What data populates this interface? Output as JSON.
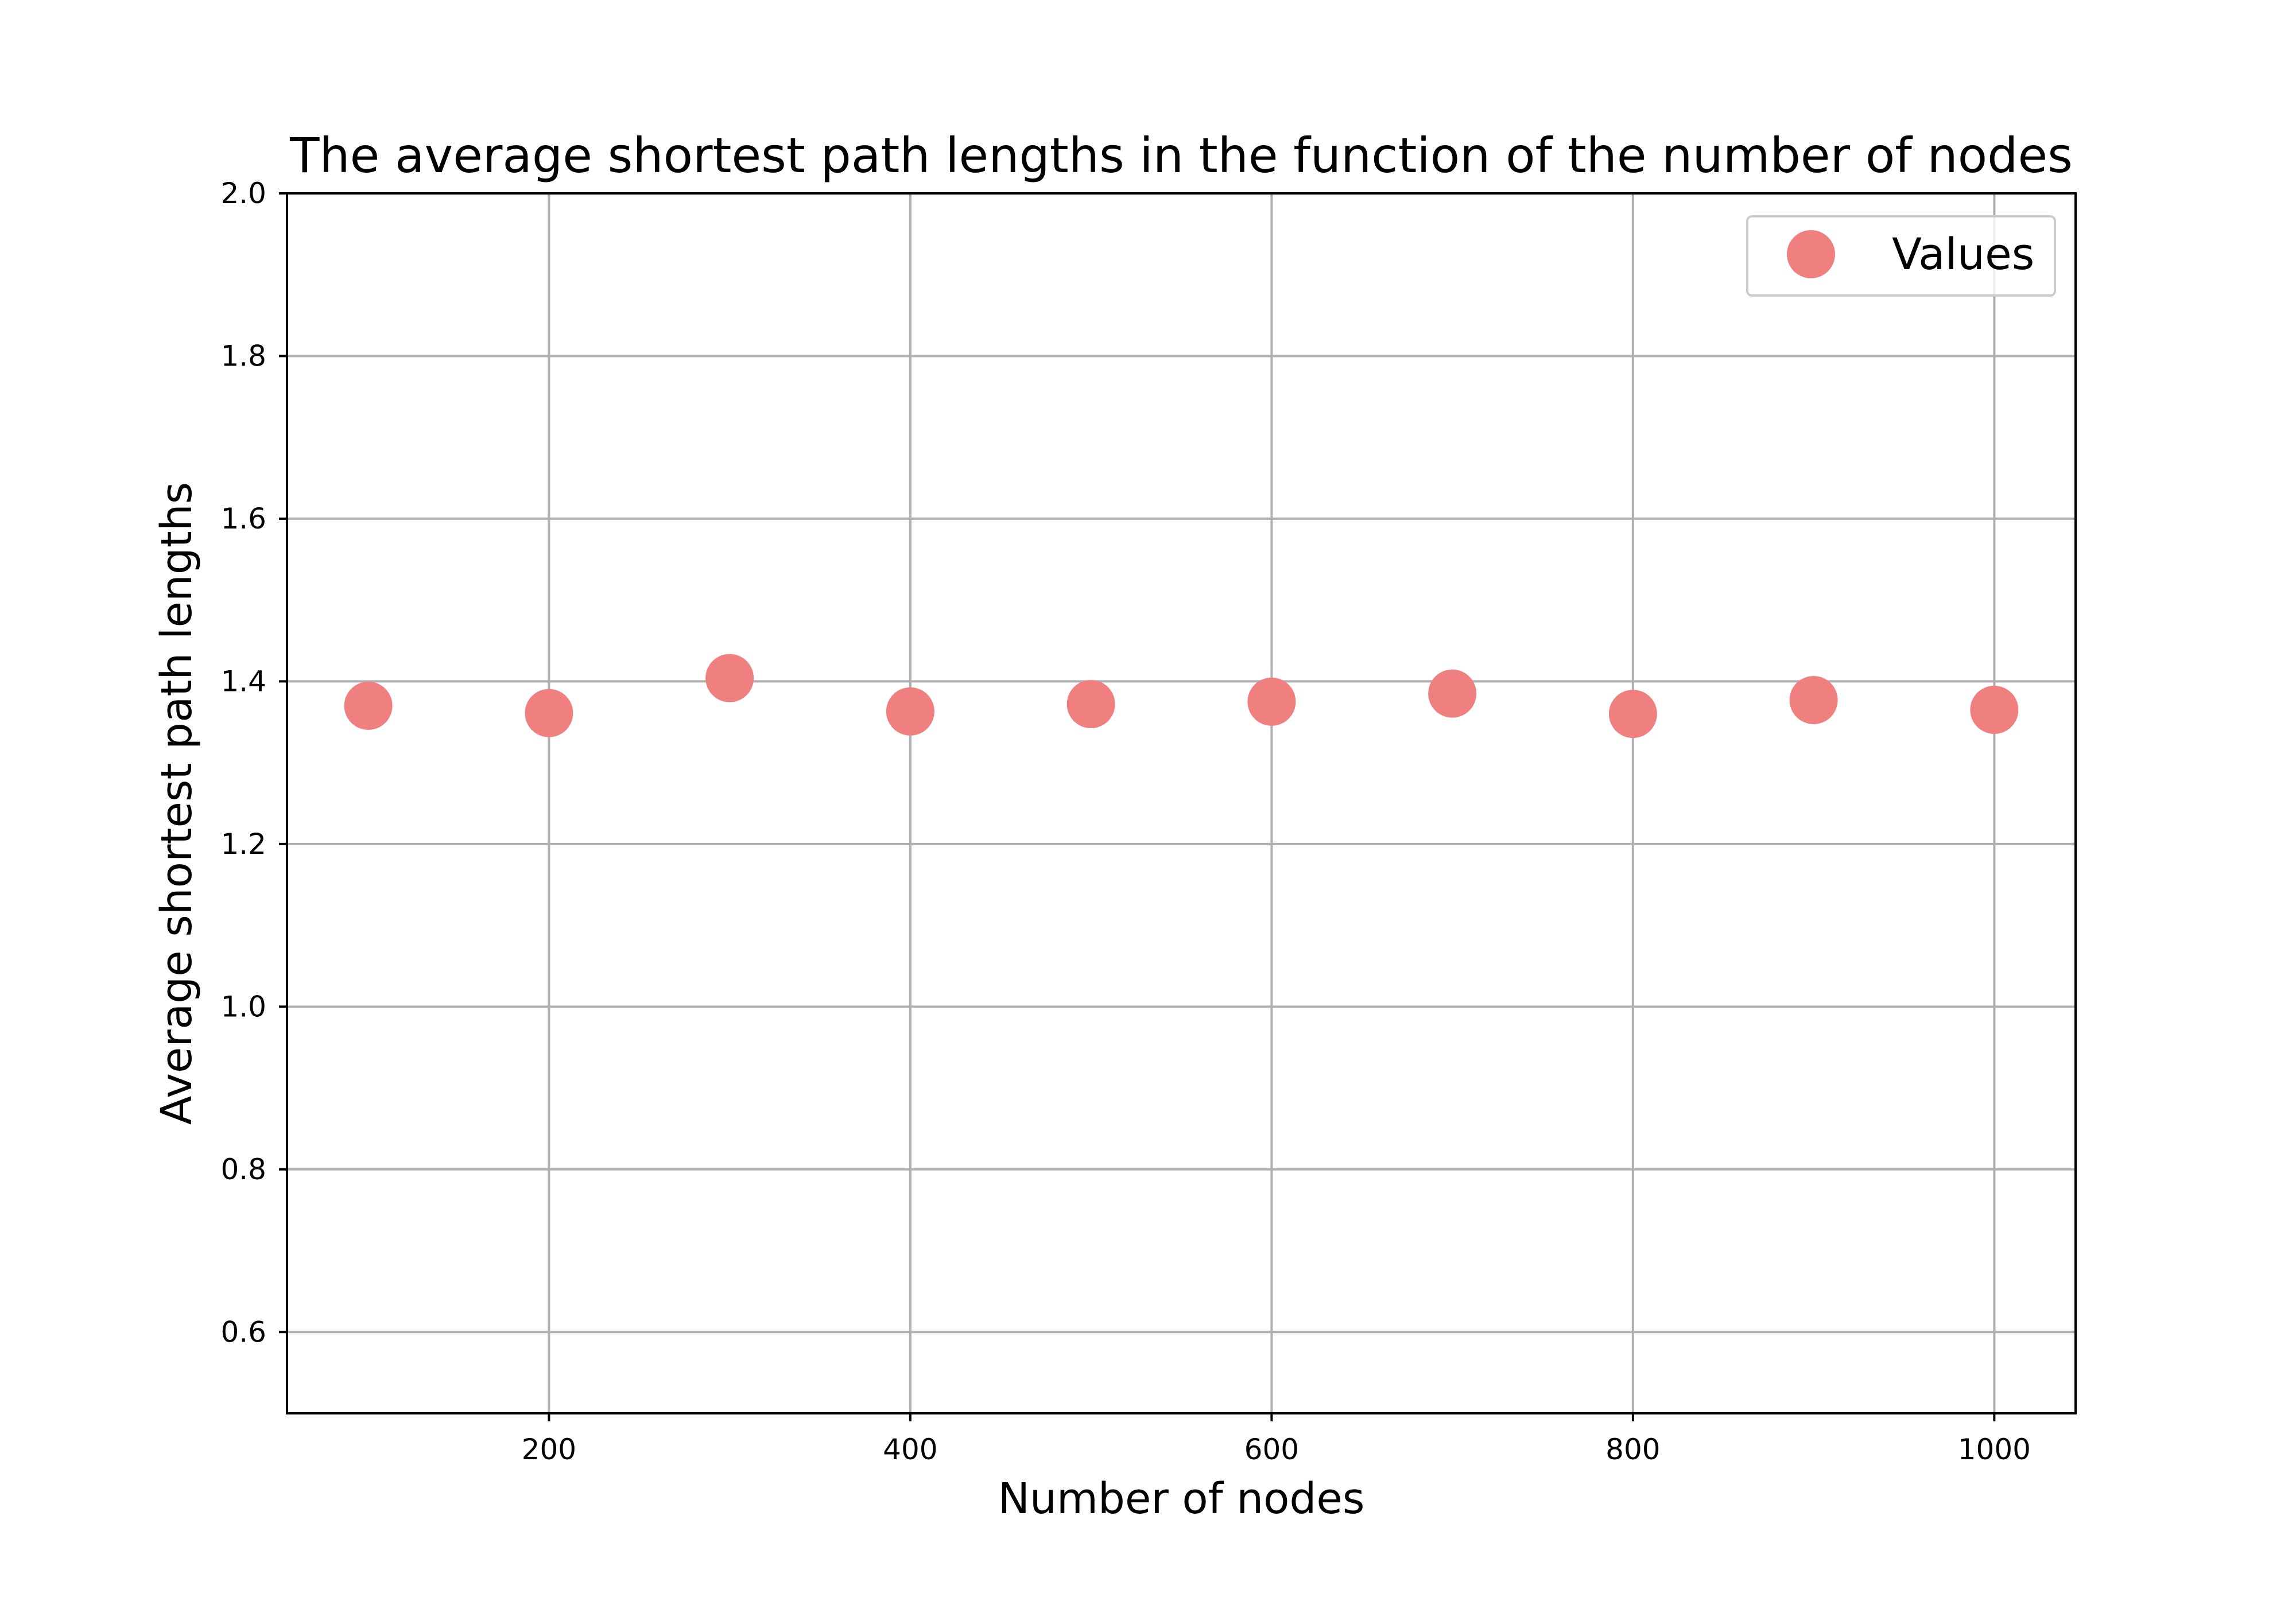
{
  "chart_data": {
    "type": "scatter",
    "title": "The average shortest path lengths in the function of the number of nodes",
    "xlabel": "Number of nodes",
    "ylabel": "Average shortest path lengths",
    "xlim": [
      55,
      1045
    ],
    "ylim": [
      0.5,
      2.0
    ],
    "xticks": [
      200,
      400,
      600,
      800,
      1000
    ],
    "xtick_labels": [
      "200",
      "400",
      "600",
      "800",
      "1000"
    ],
    "yticks": [
      0.6,
      0.8,
      1.0,
      1.2,
      1.4,
      1.6,
      1.8,
      2.0
    ],
    "ytick_labels": [
      "0.6",
      "0.8",
      "1.0",
      "1.2",
      "1.4",
      "1.6",
      "1.8",
      "2.0"
    ],
    "grid": true,
    "legend_position": "top-right",
    "series": [
      {
        "name": "Values",
        "color": "#f08080",
        "x": [
          100,
          200,
          300,
          400,
          500,
          600,
          700,
          800,
          900,
          1000
        ],
        "y": [
          1.37,
          1.361,
          1.404,
          1.363,
          1.372,
          1.375,
          1.385,
          1.36,
          1.377,
          1.365
        ]
      }
    ]
  }
}
